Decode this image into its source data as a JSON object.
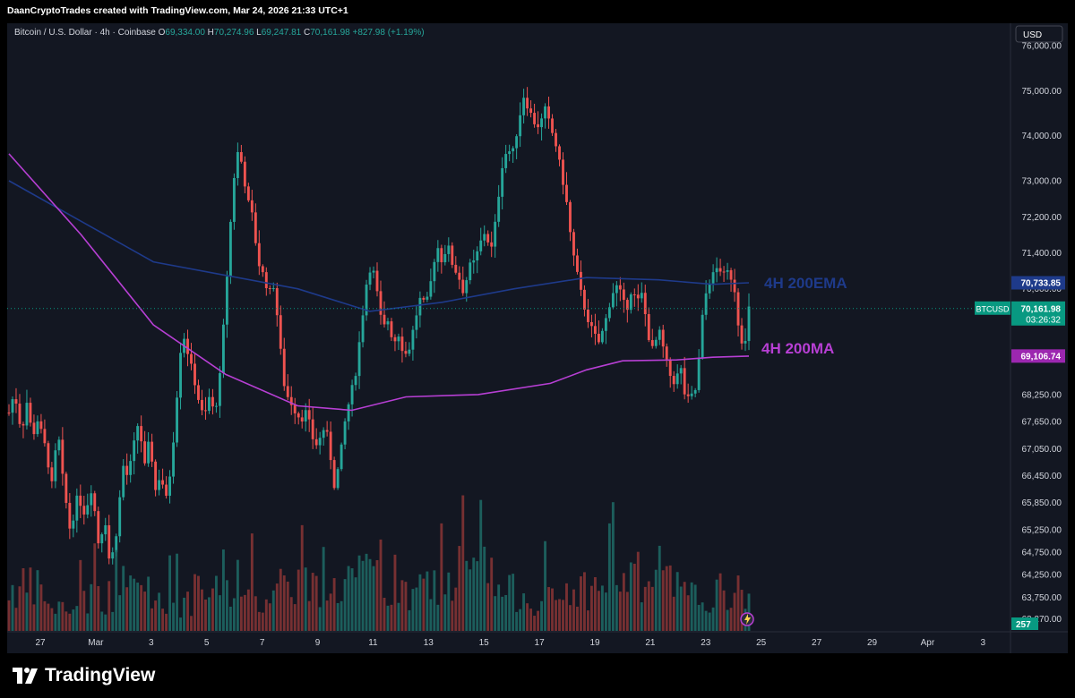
{
  "header": {
    "credit": "DaanCryptoTrades created with TradingView.com, Mar 24, 2026 21:33 UTC+1",
    "symbol_line": "Bitcoin / U.S. Dollar · 4h · Coinbase",
    "open_label": "O",
    "open_value": "69,334.00",
    "high_label": "H",
    "high_value": "70,274.96",
    "low_label": "L",
    "low_value": "69,247.81",
    "close_label": "C",
    "close_value": "70,161.98",
    "change_value": "+827.98 (+1.19%)"
  },
  "currency_button": "USD",
  "brand": "TradingView",
  "colors": {
    "background": "#131722",
    "up": "#26a69a",
    "down": "#ef5350",
    "ema": "#1e3a8a",
    "ma": "#b73fd4",
    "price_label": "#089981"
  },
  "chart_data": {
    "type": "candlestick",
    "timeframe": "4h",
    "ylim": [
      63000,
      76500
    ],
    "y_ticks": [
      "76,000.00",
      "75,000.00",
      "74,000.00",
      "73,000.00",
      "72,200.00",
      "71,400.00",
      "70,600.00",
      "69,900.00",
      "69,100.00",
      "68,250.00",
      "67,650.00",
      "67,050.00",
      "66,450.00",
      "65,850.00",
      "65,250.00",
      "64,750.00",
      "64,250.00",
      "63,750.00",
      "63,270.00"
    ],
    "x_ticks": [
      "27",
      "Mar",
      "3",
      "5",
      "7",
      "9",
      "11",
      "13",
      "15",
      "17",
      "19",
      "21",
      "23",
      "25",
      "27",
      "29",
      "Apr",
      "3"
    ],
    "price_path": [
      [
        0,
        67850
      ],
      [
        3,
        68300
      ],
      [
        7,
        67400
      ],
      [
        10,
        68100
      ],
      [
        13,
        67300
      ],
      [
        16,
        67700
      ],
      [
        20,
        67100
      ],
      [
        24,
        66200
      ],
      [
        27,
        67500
      ],
      [
        30,
        66300
      ],
      [
        34,
        65200
      ],
      [
        38,
        66000
      ],
      [
        42,
        65600
      ],
      [
        46,
        66200
      ],
      [
        50,
        64800
      ],
      [
        53,
        65600
      ],
      [
        56,
        64400
      ],
      [
        60,
        65300
      ],
      [
        63,
        66700
      ],
      [
        66,
        66400
      ],
      [
        69,
        67100
      ],
      [
        72,
        67700
      ],
      [
        75,
        66600
      ],
      [
        78,
        67300
      ],
      [
        81,
        66100
      ],
      [
        84,
        66500
      ],
      [
        87,
        65900
      ],
      [
        90,
        66700
      ],
      [
        93,
        68200
      ],
      [
        96,
        69700
      ],
      [
        99,
        69200
      ],
      [
        102,
        68700
      ],
      [
        105,
        68150
      ],
      [
        108,
        67700
      ],
      [
        111,
        68200
      ],
      [
        114,
        67800
      ],
      [
        117,
        68700
      ],
      [
        120,
        70400
      ],
      [
        123,
        72200
      ],
      [
        126,
        73700
      ],
      [
        129,
        73400
      ],
      [
        132,
        72600
      ],
      [
        135,
        72200
      ],
      [
        138,
        71200
      ],
      [
        141,
        70900
      ],
      [
        144,
        70500
      ],
      [
        147,
        70700
      ],
      [
        150,
        69400
      ],
      [
        153,
        68300
      ],
      [
        156,
        68100
      ],
      [
        159,
        67850
      ],
      [
        162,
        67700
      ],
      [
        165,
        67900
      ],
      [
        168,
        67300
      ],
      [
        171,
        67100
      ],
      [
        174,
        67500
      ],
      [
        177,
        67300
      ],
      [
        180,
        66200
      ],
      [
        183,
        66700
      ],
      [
        186,
        67600
      ],
      [
        189,
        68200
      ],
      [
        192,
        68700
      ],
      [
        195,
        69700
      ],
      [
        198,
        70700
      ],
      [
        201,
        71200
      ],
      [
        204,
        70500
      ],
      [
        207,
        69700
      ],
      [
        210,
        69900
      ],
      [
        213,
        69400
      ],
      [
        216,
        69600
      ],
      [
        219,
        69100
      ],
      [
        222,
        69300
      ],
      [
        225,
        69900
      ],
      [
        228,
        70400
      ],
      [
        231,
        70200
      ],
      [
        234,
        70800
      ],
      [
        237,
        71600
      ],
      [
        240,
        71200
      ],
      [
        243,
        71600
      ],
      [
        246,
        71100
      ],
      [
        249,
        70900
      ],
      [
        252,
        70500
      ],
      [
        255,
        71100
      ],
      [
        258,
        71200
      ],
      [
        261,
        71600
      ],
      [
        264,
        71900
      ],
      [
        267,
        71400
      ],
      [
        270,
        72200
      ],
      [
        273,
        73300
      ],
      [
        276,
        73700
      ],
      [
        279,
        73600
      ],
      [
        282,
        74200
      ],
      [
        285,
        74900
      ],
      [
        288,
        74600
      ],
      [
        291,
        74300
      ],
      [
        294,
        74200
      ],
      [
        297,
        74600
      ],
      [
        300,
        74200
      ],
      [
        303,
        73800
      ],
      [
        306,
        73200
      ],
      [
        309,
        72500
      ],
      [
        312,
        71500
      ],
      [
        315,
        70900
      ],
      [
        318,
        70300
      ],
      [
        321,
        69900
      ],
      [
        324,
        69600
      ],
      [
        327,
        69400
      ],
      [
        330,
        69800
      ],
      [
        333,
        70300
      ],
      [
        336,
        70700
      ],
      [
        339,
        70500
      ],
      [
        342,
        70100
      ],
      [
        345,
        70600
      ],
      [
        348,
        70300
      ],
      [
        351,
        70500
      ],
      [
        354,
        69600
      ],
      [
        357,
        69200
      ],
      [
        360,
        69700
      ],
      [
        363,
        69200
      ],
      [
        366,
        68700
      ],
      [
        369,
        68500
      ],
      [
        372,
        68900
      ],
      [
        375,
        68100
      ],
      [
        378,
        68200
      ],
      [
        381,
        68400
      ],
      [
        384,
        69900
      ],
      [
        387,
        70700
      ],
      [
        390,
        70900
      ],
      [
        393,
        71100
      ],
      [
        396,
        70900
      ],
      [
        399,
        71000
      ],
      [
        402,
        70600
      ],
      [
        405,
        69500
      ],
      [
        408,
        69400
      ],
      [
        410,
        70162
      ]
    ],
    "ema_200_path": [
      [
        0,
        73000
      ],
      [
        40,
        72100
      ],
      [
        80,
        71200
      ],
      [
        120,
        70900
      ],
      [
        160,
        70600
      ],
      [
        200,
        70100
      ],
      [
        240,
        70300
      ],
      [
        280,
        70600
      ],
      [
        320,
        70850
      ],
      [
        360,
        70800
      ],
      [
        390,
        70700
      ],
      [
        410,
        70733.85
      ]
    ],
    "ma_200_path": [
      [
        0,
        73600
      ],
      [
        40,
        71800
      ],
      [
        80,
        69800
      ],
      [
        120,
        68700
      ],
      [
        160,
        68000
      ],
      [
        190,
        67900
      ],
      [
        220,
        68200
      ],
      [
        260,
        68250
      ],
      [
        300,
        68500
      ],
      [
        320,
        68800
      ],
      [
        340,
        69000
      ],
      [
        370,
        69020
      ],
      [
        390,
        69080
      ],
      [
        410,
        69106.74
      ]
    ],
    "volume_profile": [
      55,
      30,
      45,
      60,
      35,
      50,
      40,
      65,
      55,
      70,
      45,
      60,
      80,
      50,
      40,
      55,
      70,
      60,
      45,
      50
    ],
    "current_price_label": "70,161.98",
    "current_price_time": "03:26:32",
    "ema_value_label": "70,733.85",
    "ma_value_label": "69,106.74",
    "volume_value_label": "257",
    "symbol_badge": "BTCUSD",
    "annotations": [
      {
        "text": "4H 200EMA",
        "color": "#1e3a8a"
      },
      {
        "text": "4H 200MA",
        "color": "#b73fd4"
      }
    ]
  }
}
